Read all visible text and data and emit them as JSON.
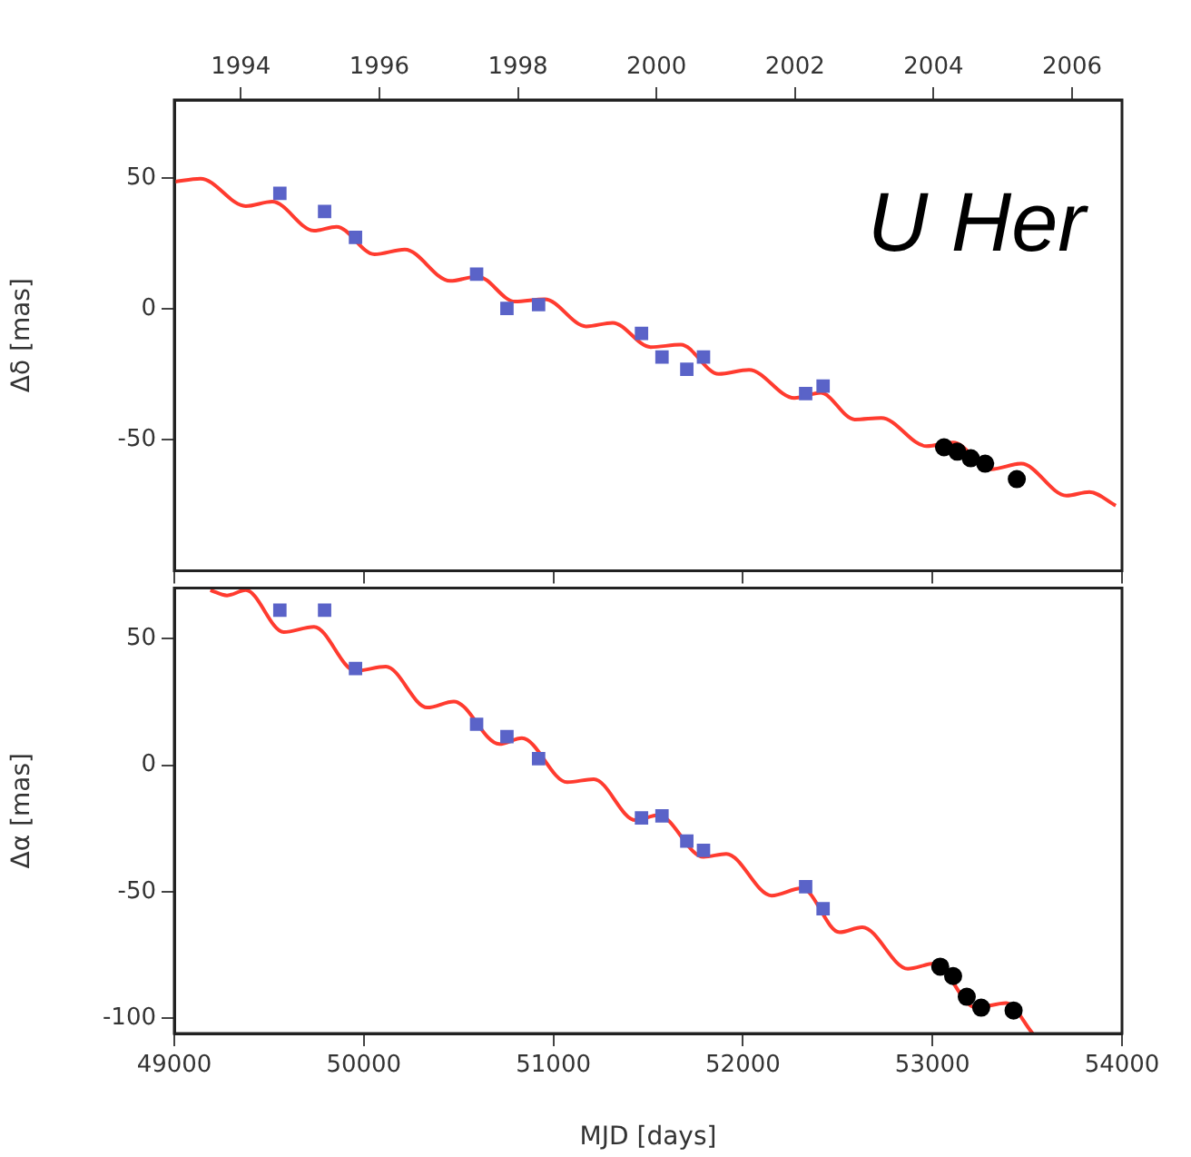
{
  "chart_data": [
    {
      "type": "scatter",
      "ylabel": "Δδ [mas]",
      "annotations": [
        "U Her"
      ],
      "xlim": [
        49000,
        54000
      ],
      "xticks": [
        49000,
        50000,
        51000,
        52000,
        53000,
        54000
      ],
      "ylim": [
        -100,
        80
      ],
      "yticks": [
        -50,
        0,
        50
      ],
      "x2lim": [
        1993.04,
        2006.72
      ],
      "x2ticks": [
        1994,
        1996,
        1998,
        2000,
        2002,
        2004,
        2006
      ],
      "tick_labels": "y",
      "grid": false,
      "legend": false,
      "series": [
        {
          "type": "line",
          "color": "#ff3b2f",
          "marker": "none",
          "line_style": "solid",
          "x": [
            49000,
            49138,
            49377,
            49517,
            49737,
            49856,
            50056,
            50216,
            50455,
            50600,
            50797,
            50954,
            51173,
            51313,
            51513,
            51672,
            51872,
            52032,
            52271,
            52410,
            52590,
            52730,
            52969,
            53109,
            53309,
            53468,
            53707,
            53828,
            53967
          ],
          "values": [
            48.7,
            49.9,
            39.4,
            41.1,
            30,
            31.5,
            21,
            22.8,
            10.8,
            12.5,
            2.9,
            3.8,
            -6.6,
            -5.2,
            -14.5,
            -13.6,
            -24.8,
            -23.2,
            -34,
            -32,
            -42.2,
            -41.6,
            -52.4,
            -51,
            -61.2,
            -59.1,
            -71.3,
            -69.9,
            -75.1
          ]
        },
        {
          "type": "scatter",
          "color": "#5a63c8",
          "marker": "square",
          "x": [
            49557,
            49793,
            49956,
            50595,
            50755,
            50922,
            51465,
            51573,
            51704,
            51792,
            52331,
            52423
          ],
          "values": [
            44.3,
            37.3,
            27.4,
            13.4,
            0.3,
            1.7,
            -9.3,
            -18.3,
            -23,
            -18.3,
            -32.3,
            -29.4
          ]
        },
        {
          "type": "scatter",
          "color": "#000000",
          "marker": "circle",
          "x": [
            53061,
            53131,
            53202,
            53278,
            53445
          ],
          "values": [
            -52.8,
            -54.5,
            -57,
            -59.1,
            -65
          ]
        }
      ]
    },
    {
      "type": "scatter",
      "xlabel": "MJD [days]",
      "ylabel": "Δα [mas]",
      "xlim": [
        49000,
        54000
      ],
      "xticks": [
        49000,
        50000,
        51000,
        52000,
        53000,
        54000
      ],
      "ylim": [
        -106,
        70
      ],
      "yticks": [
        -100,
        -50,
        0,
        50
      ],
      "grid": false,
      "legend": false,
      "series": [
        {
          "type": "line",
          "color": "#ff3b2f",
          "marker": "none",
          "line_style": "solid",
          "x": [
            49190,
            49278,
            49377,
            49577,
            49737,
            49956,
            50116,
            50335,
            50475,
            50715,
            50834,
            51073,
            51213,
            51433,
            51553,
            51792,
            51912,
            52151,
            52311,
            52510,
            52630,
            52870,
            53010,
            53229,
            53389,
            53529
          ],
          "values": [
            69.2,
            67.1,
            69.2,
            52.6,
            54.7,
            37.3,
            39,
            22.8,
            25.2,
            8.4,
            10.7,
            -6.7,
            -5.5,
            -21.7,
            -19.7,
            -36.2,
            -35,
            -51.5,
            -48.6,
            -66,
            -64,
            -80.4,
            -78.4,
            -95.8,
            -94,
            -106
          ]
        },
        {
          "type": "scatter",
          "color": "#5a63c8",
          "marker": "square",
          "x": [
            49557,
            49793,
            49956,
            50595,
            50755,
            50922,
            51465,
            51573,
            51704,
            51792,
            52331,
            52423
          ],
          "values": [
            61.3,
            61.3,
            38.2,
            16.2,
            11.3,
            2.6,
            -20.8,
            -20,
            -30,
            -33.6,
            -48,
            -56.7
          ]
        },
        {
          "type": "scatter",
          "color": "#000000",
          "marker": "circle",
          "x": [
            53041,
            53109,
            53181,
            53257,
            53428
          ],
          "values": [
            -79.6,
            -83.3,
            -91.5,
            -95.8,
            -96.9
          ]
        }
      ]
    }
  ]
}
